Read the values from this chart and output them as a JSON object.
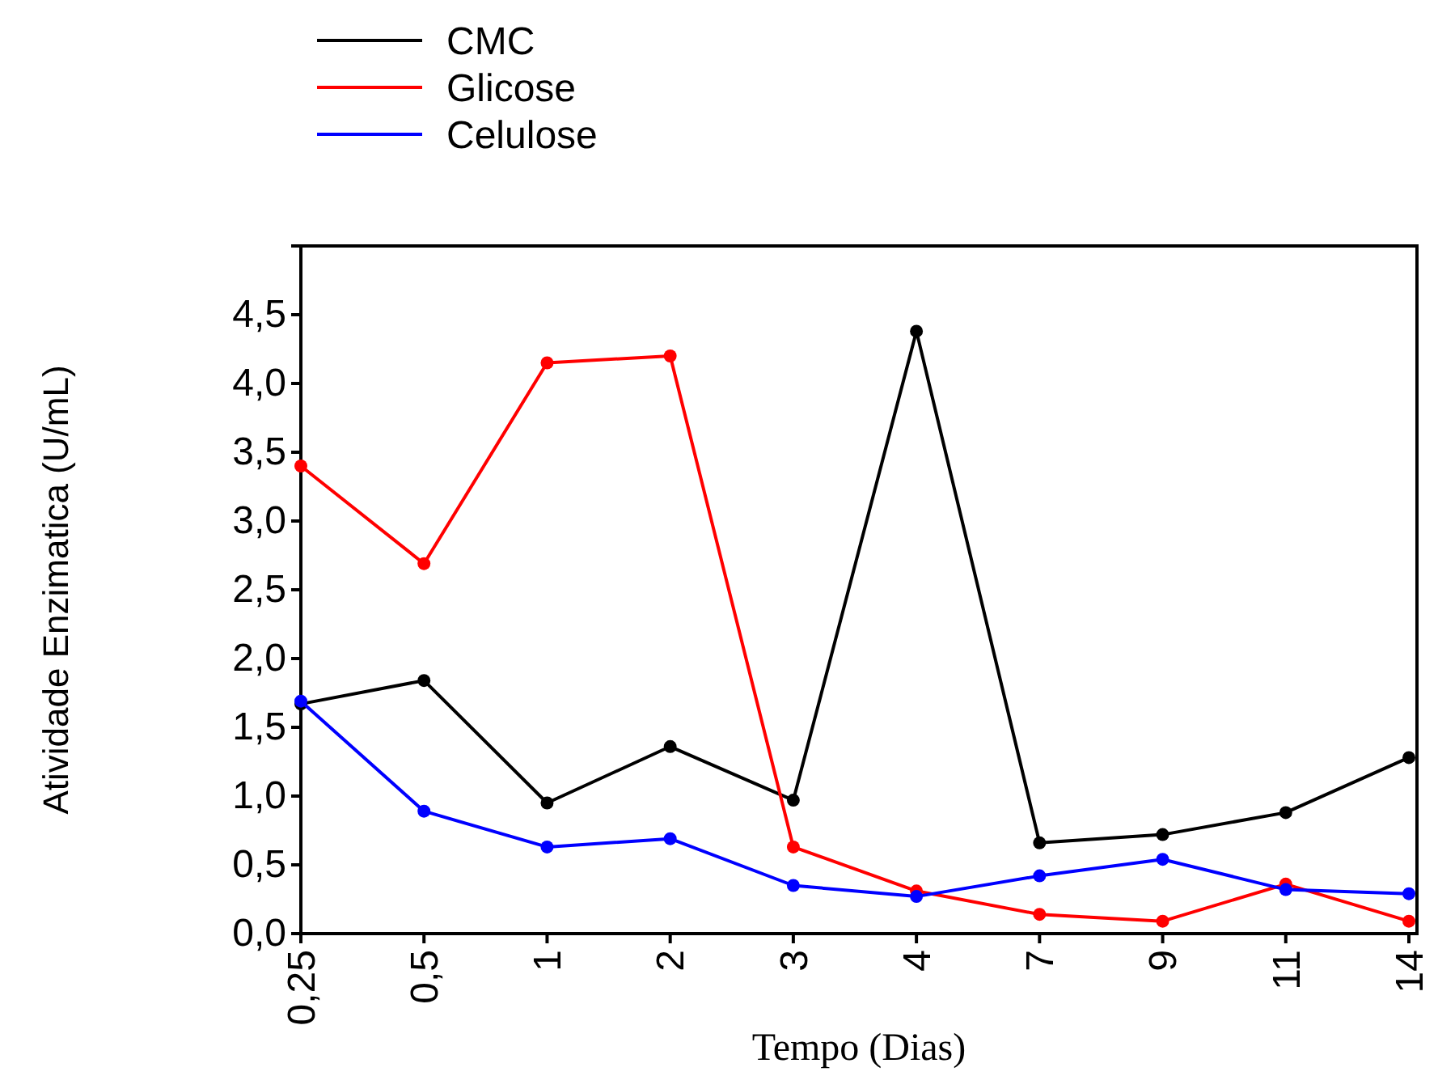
{
  "chart_data": {
    "type": "line",
    "xlabel": "Tempo (Dias)",
    "ylabel": "Atividade Enzimatica (U/mL)",
    "categories": [
      "0,25",
      "0,5",
      "1",
      "2",
      "3",
      "4",
      "7",
      "9",
      "11",
      "14"
    ],
    "series": [
      {
        "name": "CMC",
        "color": "#000000",
        "values": [
          1.67,
          1.84,
          0.95,
          1.36,
          0.97,
          4.38,
          0.66,
          0.72,
          0.88,
          1.28
        ]
      },
      {
        "name": "Glicose",
        "color": "#ff0000",
        "values": [
          3.4,
          2.69,
          4.15,
          4.2,
          0.63,
          0.31,
          0.14,
          0.09,
          0.36,
          0.09
        ]
      },
      {
        "name": "Celulose",
        "color": "#0000ff",
        "values": [
          1.69,
          0.89,
          0.63,
          0.69,
          0.35,
          0.27,
          0.42,
          0.54,
          0.32,
          0.29
        ]
      }
    ],
    "ylim": [
      0,
      5
    ],
    "yticks": [
      {
        "value": 0,
        "label": "0,0"
      },
      {
        "value": 0.5,
        "label": "0,5"
      },
      {
        "value": 1,
        "label": "1,0"
      },
      {
        "value": 1.5,
        "label": "1,5"
      },
      {
        "value": 2,
        "label": "2,0"
      },
      {
        "value": 2.5,
        "label": "2,5"
      },
      {
        "value": 3,
        "label": "3,0"
      },
      {
        "value": 3.5,
        "label": "3,5"
      },
      {
        "value": 4,
        "label": "4,0"
      },
      {
        "value": 4.5,
        "label": "4,5"
      }
    ],
    "grid": false,
    "legend": "top left",
    "marker": "circle",
    "line_style": "solid"
  }
}
